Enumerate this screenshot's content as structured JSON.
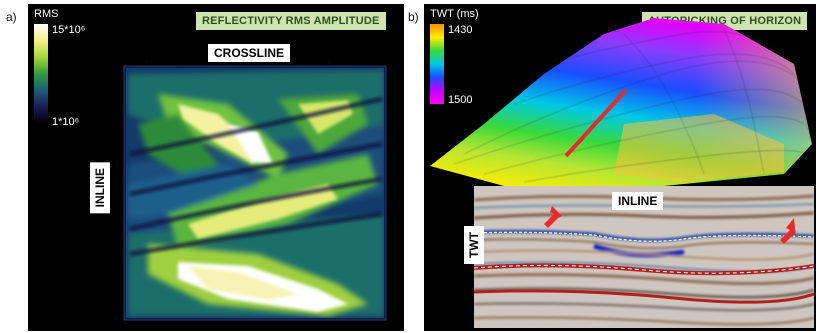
{
  "panel_a": {
    "letter": "a)",
    "title": "REFLECTIVITY RMS AMPLITUDE",
    "crossline_label": "CROSSLINE",
    "inline_label": "INLINE",
    "scale": {
      "name": "RMS",
      "max_label": "15*10⁶",
      "min_label": "1*10⁶",
      "colors": [
        "#ffffff",
        "#f2f08a",
        "#a6d63a",
        "#2f9a3c",
        "#1a5b7a",
        "#1a1a55",
        "#000000"
      ]
    }
  },
  "panel_b": {
    "letter": "b)",
    "title": "AUTOPICKING OF HORIZON",
    "inline_label": "INLINE",
    "twt_label": "TWT",
    "scale": {
      "name": "TWT (ms)",
      "top_label": "1430",
      "bottom_label": "1500",
      "colors": [
        "#ff8c00",
        "#ffee00",
        "#39d93a",
        "#00c8e6",
        "#1a4dff",
        "#c400ff",
        "#ff00ff"
      ]
    },
    "accent_line_color": "#e52b2b",
    "arrow_color": "#e52b2b"
  }
}
